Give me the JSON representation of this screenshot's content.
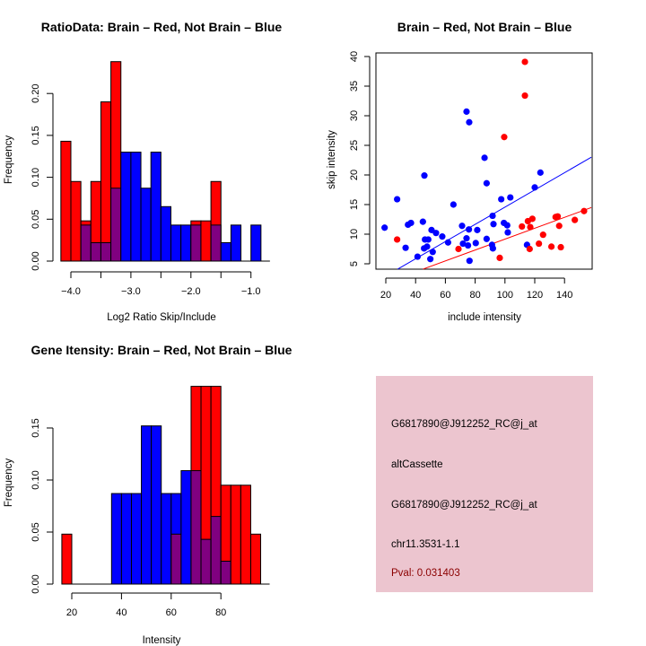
{
  "colors": {
    "brain": "#ff0000",
    "not_brain": "#0000ff",
    "overlap": "#800080",
    "info_box_bg": "#ecc5cf",
    "pval_text": "#8b0000"
  },
  "info_box": {
    "lines": [
      "G6817890@J912252_RC@j_at",
      "altCassette",
      "G6817890@J912252_RC@j_at",
      "chr11.3531-1.1"
    ],
    "pval_label": "Pval: 0.031403"
  },
  "chart_data": [
    {
      "id": "ratio-histogram",
      "type": "bar",
      "title": "RatioData: Brain – Red, Not Brain – Blue",
      "xlabel": "Log2 Ratio Skip/Include",
      "ylabel": "Frequency",
      "xlim": [
        -4.1667,
        -0.8333
      ],
      "ylim": [
        0,
        0.24
      ],
      "xticks": [
        -4.0,
        -3.5,
        -3.0,
        -2.5,
        -2.0,
        -1.5,
        -1.0
      ],
      "xtick_labels": [
        "−4.0",
        "",
        "−3.0",
        "",
        "−2.0",
        "",
        "−1.0"
      ],
      "yticks": [
        0.0,
        0.05,
        0.1,
        0.15,
        0.2
      ],
      "ytick_labels": [
        "0.00",
        "0.05",
        "0.10",
        "0.15",
        "0.20"
      ],
      "bin_start": -4.1667,
      "bin_width": 0.16667,
      "series": [
        {
          "name": "Brain (Red)",
          "values": [
            0.143,
            0.095,
            0.048,
            0.095,
            0.19,
            0.238,
            0,
            0,
            0,
            0,
            0,
            0,
            0,
            0.048,
            0.048,
            0.095,
            0,
            0,
            0,
            0
          ]
        },
        {
          "name": "Not Brain (Blue)",
          "values": [
            0,
            0,
            0.043,
            0.022,
            0.022,
            0.087,
            0.13,
            0.13,
            0.087,
            0.13,
            0.065,
            0.043,
            0.043,
            0.043,
            0,
            0.043,
            0.022,
            0.043,
            0,
            0.043
          ]
        }
      ]
    },
    {
      "id": "intensity-scatter",
      "type": "scatter",
      "title": "Brain – Red, Not Brain – Blue",
      "xlabel": "include intensity",
      "ylabel": "skip intensity",
      "xlim": [
        12,
        158
      ],
      "ylim": [
        4.1,
        41.3
      ],
      "xticks": [
        20,
        40,
        60,
        80,
        100,
        120,
        140
      ],
      "xtick_labels": [
        "20",
        "40",
        "60",
        "80",
        "100",
        "120",
        "140"
      ],
      "yticks": [
        5,
        10,
        15,
        20,
        25,
        30,
        35,
        40
      ],
      "ytick_labels": [
        "5",
        "10",
        "15",
        "20",
        "25",
        "30",
        "35",
        "40"
      ],
      "series": [
        {
          "name": "Not Brain (Blue)",
          "points": [
            [
              19.2,
              11.1
            ],
            [
              27.6,
              15.9
            ],
            [
              33.3,
              7.7
            ],
            [
              34.9,
              11.6
            ],
            [
              36.9,
              11.9
            ],
            [
              41.3,
              6.2
            ],
            [
              44.9,
              12.1
            ],
            [
              45.9,
              19.9
            ],
            [
              45.7,
              7.6
            ],
            [
              46.3,
              9.1
            ],
            [
              47.7,
              7.9
            ],
            [
              48.5,
              9.1
            ],
            [
              49.9,
              5.8
            ],
            [
              50.7,
              10.7
            ],
            [
              51.5,
              7.0
            ],
            [
              53.7,
              10.2
            ],
            [
              57.9,
              9.6
            ],
            [
              61.8,
              8.6
            ],
            [
              65.4,
              15.0
            ],
            [
              71.2,
              11.4
            ],
            [
              71.8,
              8.4
            ],
            [
              74.2,
              30.7
            ],
            [
              74.2,
              9.3
            ],
            [
              75.2,
              8.1
            ],
            [
              76.0,
              28.9
            ],
            [
              75.8,
              10.8
            ],
            [
              76.2,
              5.5
            ],
            [
              80.4,
              8.5
            ],
            [
              81.4,
              10.7
            ],
            [
              86.3,
              22.9
            ],
            [
              87.7,
              18.6
            ],
            [
              87.7,
              9.2
            ],
            [
              91.3,
              8.2
            ],
            [
              91.7,
              13.1
            ],
            [
              91.9,
              7.6
            ],
            [
              92.3,
              11.7
            ],
            [
              97.5,
              15.9
            ],
            [
              99.3,
              11.9
            ],
            [
              101.5,
              11.5
            ],
            [
              101.9,
              10.3
            ],
            [
              103.6,
              16.2
            ],
            [
              114.8,
              8.2
            ],
            [
              120.0,
              17.9
            ],
            [
              123.8,
              20.4
            ]
          ],
          "fit_line": [
            [
              28.0,
              4.1
            ],
            [
              158.0,
              23.0
            ]
          ]
        },
        {
          "name": "Brain (Red)",
          "points": [
            [
              27.6,
              9.1
            ],
            [
              68.8,
              7.5
            ],
            [
              96.5,
              6.0
            ],
            [
              99.5,
              26.4
            ],
            [
              113.4,
              39.1
            ],
            [
              113.4,
              33.4
            ],
            [
              111.4,
              11.3
            ],
            [
              115.4,
              12.2
            ],
            [
              117.0,
              11.2
            ],
            [
              116.6,
              7.5
            ],
            [
              118.4,
              12.6
            ],
            [
              122.8,
              8.4
            ],
            [
              125.6,
              9.9
            ],
            [
              131.2,
              7.9
            ],
            [
              134.0,
              12.9
            ],
            [
              135.4,
              13.0
            ],
            [
              136.4,
              11.4
            ],
            [
              137.5,
              7.8
            ],
            [
              146.9,
              12.4
            ],
            [
              153.1,
              13.9
            ]
          ],
          "fit_line": [
            [
              45.0,
              4.1
            ],
            [
              158.0,
              14.5
            ]
          ]
        }
      ]
    },
    {
      "id": "gene-intensity-histogram",
      "type": "bar",
      "title": "Gene Itensity: Brain – Red, Not Brain – Blue",
      "xlabel": "Intensity",
      "ylabel": "Frequency",
      "xlim": [
        16,
        96
      ],
      "ylim": [
        0,
        0.19
      ],
      "xticks": [
        20,
        40,
        60,
        80
      ],
      "xtick_labels": [
        "20",
        "40",
        "60",
        "80"
      ],
      "yticks": [
        0.0,
        0.05,
        0.1,
        0.15
      ],
      "ytick_labels": [
        "0.00",
        "0.05",
        "0.10",
        "0.15"
      ],
      "bin_start": 16,
      "bin_width": 4,
      "series": [
        {
          "name": "Brain (Red)",
          "values": [
            0.048,
            0,
            0,
            0,
            0,
            0,
            0,
            0,
            0,
            0,
            0,
            0.048,
            0,
            0.19,
            0.19,
            0.19,
            0.095,
            0.095,
            0.095,
            0.048
          ]
        },
        {
          "name": "Not Brain (Blue)",
          "values": [
            0,
            0,
            0,
            0,
            0,
            0.087,
            0.087,
            0.087,
            0.152,
            0.152,
            0.087,
            0.087,
            0.109,
            0.109,
            0.043,
            0.065,
            0.022,
            0,
            0,
            0
          ]
        }
      ]
    }
  ]
}
